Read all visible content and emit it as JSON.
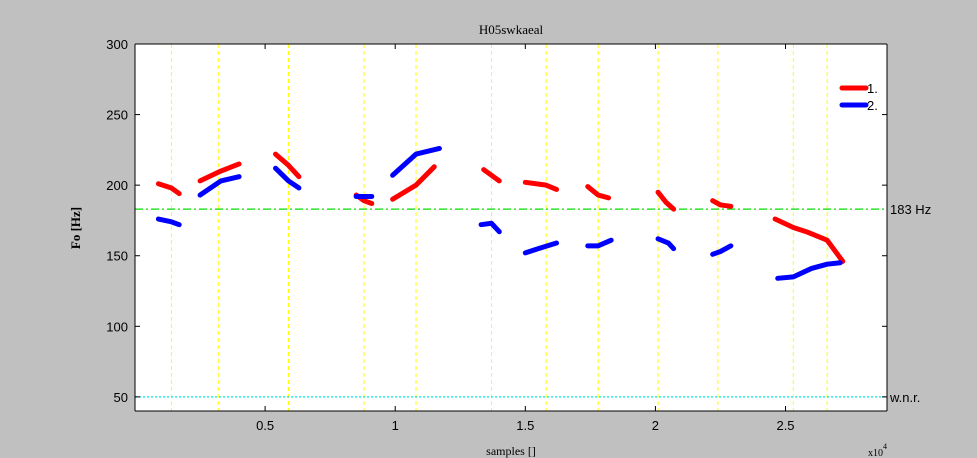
{
  "chart_data": {
    "type": "line",
    "title": "H05swkaeal",
    "xlabel": "samples []",
    "ylabel": "Fo [Hz]",
    "xlim": [
      0.0,
      2.89
    ],
    "ylim": [
      40,
      300
    ],
    "x_ticks": [
      0.5,
      1,
      1.5,
      2,
      2.5
    ],
    "x_tick_labels": [
      "0.5",
      "1",
      "1.5",
      "2",
      "2.5"
    ],
    "y_ticks": [
      50,
      100,
      150,
      200,
      250,
      300
    ],
    "y_tick_labels": [
      "50",
      "100",
      "150",
      "200",
      "250",
      "300"
    ],
    "x_exponent_label": "x10^4",
    "grid": false,
    "legend_position": "top-right",
    "colors": {
      "series1": "#ff0000",
      "series2": "#0000ff",
      "mean_line": "#00dd00",
      "wnr_line": "#00e5e5",
      "segment_markers": "#ffff00",
      "figure_bg": "#c0c0c0",
      "axes_bg": "#ffffff"
    },
    "reference_lines": [
      {
        "label": "183 Hz",
        "y": 183,
        "color": "#00dd00",
        "style": "dash-dot"
      },
      {
        "label": "w.n.r.",
        "y": 50,
        "color": "#00e5e5",
        "style": "dotted"
      }
    ],
    "vertical_markers": [
      0.14,
      0.32,
      0.59,
      0.88,
      1.08,
      1.37,
      1.58,
      1.78,
      2.01,
      2.24,
      2.53,
      2.66
    ],
    "series": [
      {
        "name": "1.",
        "color": "#ff0000",
        "segments": [
          [
            [
              0.09,
              201
            ],
            [
              0.14,
              198
            ],
            [
              0.17,
              194
            ]
          ],
          [
            [
              0.25,
              203
            ],
            [
              0.33,
              210
            ],
            [
              0.4,
              215
            ]
          ],
          [
            [
              0.54,
              222
            ],
            [
              0.59,
              214
            ],
            [
              0.63,
              206
            ]
          ],
          [
            [
              0.85,
              193
            ],
            [
              0.88,
              189
            ],
            [
              0.91,
              187
            ]
          ],
          [
            [
              0.99,
              190
            ],
            [
              1.08,
              200
            ],
            [
              1.15,
              213
            ]
          ],
          [
            [
              1.34,
              211
            ],
            [
              1.37,
              207
            ],
            [
              1.4,
              203
            ]
          ],
          [
            [
              1.5,
              202
            ],
            [
              1.58,
              200
            ],
            [
              1.62,
              197
            ]
          ],
          [
            [
              1.74,
              199
            ],
            [
              1.78,
              193
            ],
            [
              1.82,
              191
            ]
          ],
          [
            [
              2.01,
              195
            ],
            [
              2.04,
              188
            ],
            [
              2.07,
              183
            ]
          ],
          [
            [
              2.22,
              189
            ],
            [
              2.25,
              186
            ],
            [
              2.29,
              185
            ]
          ],
          [
            [
              2.46,
              176
            ],
            [
              2.53,
              170
            ],
            [
              2.58,
              167
            ],
            [
              2.66,
              161
            ],
            [
              2.72,
              146
            ]
          ]
        ]
      },
      {
        "name": "2.",
        "color": "#0000ff",
        "segments": [
          [
            [
              0.09,
              176
            ],
            [
              0.14,
              174
            ],
            [
              0.17,
              172
            ]
          ],
          [
            [
              0.25,
              193
            ],
            [
              0.33,
              203
            ],
            [
              0.4,
              206
            ]
          ],
          [
            [
              0.54,
              212
            ],
            [
              0.59,
              203
            ],
            [
              0.63,
              198
            ]
          ],
          [
            [
              0.85,
              192
            ],
            [
              0.88,
              192
            ],
            [
              0.91,
              192
            ]
          ],
          [
            [
              0.99,
              207
            ],
            [
              1.08,
              222
            ],
            [
              1.17,
              226
            ]
          ],
          [
            [
              1.33,
              172
            ],
            [
              1.37,
              173
            ],
            [
              1.4,
              167
            ]
          ],
          [
            [
              1.5,
              152
            ],
            [
              1.55,
              155
            ],
            [
              1.62,
              159
            ]
          ],
          [
            [
              1.74,
              157
            ],
            [
              1.78,
              157
            ],
            [
              1.83,
              161
            ]
          ],
          [
            [
              2.01,
              162
            ],
            [
              2.05,
              159
            ],
            [
              2.07,
              155
            ]
          ],
          [
            [
              2.22,
              151
            ],
            [
              2.25,
              153
            ],
            [
              2.29,
              157
            ]
          ],
          [
            [
              2.47,
              134
            ],
            [
              2.53,
              135
            ],
            [
              2.6,
              141
            ],
            [
              2.66,
              144
            ],
            [
              2.71,
              145
            ]
          ]
        ]
      }
    ]
  }
}
